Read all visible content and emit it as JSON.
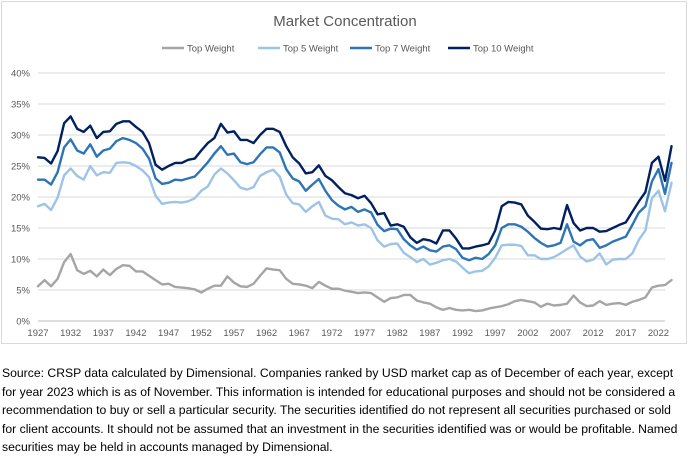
{
  "chart_data": {
    "type": "line",
    "title": "Market Concentration",
    "xlabel": "",
    "ylabel": "",
    "ylim": [
      0,
      40
    ],
    "yticks": [
      "0%",
      "5%",
      "10%",
      "15%",
      "20%",
      "25%",
      "30%",
      "35%",
      "40%"
    ],
    "ytick_values": [
      0,
      5,
      10,
      15,
      20,
      25,
      30,
      35,
      40
    ],
    "xticks": [
      "1927",
      "1932",
      "1937",
      "1942",
      "1947",
      "1952",
      "1957",
      "1962",
      "1967",
      "1972",
      "1977",
      "1982",
      "1987",
      "1992",
      "1997",
      "2002",
      "2007",
      "2012",
      "2017",
      "2022"
    ],
    "x_start": 1927,
    "x_end": 2023,
    "legend_position": "top-center",
    "series": [
      {
        "name": "Top Weight",
        "color": "#a5a5a5",
        "values": [
          5.6,
          6.6,
          5.6,
          6.8,
          9.5,
          10.8,
          8.2,
          7.6,
          8.1,
          7.2,
          8.3,
          7.4,
          8.4,
          9.0,
          8.9,
          8.0,
          8.0,
          7.3,
          6.6,
          5.9,
          6.0,
          5.5,
          5.4,
          5.3,
          5.1,
          4.6,
          5.2,
          5.7,
          5.7,
          7.2,
          6.2,
          5.6,
          5.5,
          6.0,
          7.3,
          8.5,
          8.3,
          8.2,
          6.8,
          6.0,
          5.9,
          5.7,
          5.3,
          6.3,
          5.7,
          5.2,
          5.2,
          4.9,
          4.7,
          4.5,
          4.6,
          4.5,
          3.8,
          3.1,
          3.7,
          3.8,
          4.2,
          4.2,
          3.3,
          3.0,
          2.8,
          2.2,
          1.8,
          2.1,
          1.8,
          1.7,
          1.8,
          1.6,
          1.7,
          2.0,
          2.2,
          2.4,
          2.7,
          3.2,
          3.4,
          3.2,
          3.0,
          2.3,
          2.8,
          2.5,
          2.6,
          2.8,
          4.1,
          3.0,
          2.4,
          2.5,
          3.2,
          2.6,
          2.8,
          2.9,
          2.6,
          3.1,
          3.4,
          3.8,
          5.4,
          5.7,
          5.8,
          6.6
        ]
      },
      {
        "name": "Top 5 Weight",
        "color": "#9dc3e6",
        "values": [
          18.5,
          18.9,
          17.9,
          19.9,
          23.5,
          24.6,
          23.4,
          22.8,
          25.0,
          23.5,
          24.0,
          23.9,
          25.5,
          25.6,
          25.5,
          25.0,
          24.3,
          23.2,
          20.2,
          18.9,
          19.1,
          19.2,
          19.1,
          19.3,
          19.8,
          21.0,
          21.7,
          23.6,
          24.6,
          23.8,
          22.7,
          21.5,
          21.2,
          21.6,
          23.4,
          24.0,
          24.4,
          23.3,
          20.4,
          19.0,
          18.8,
          17.6,
          18.5,
          19.2,
          17.0,
          16.5,
          16.4,
          15.6,
          15.9,
          15.4,
          15.6,
          15.0,
          13.0,
          12.0,
          12.4,
          12.5,
          11.0,
          10.3,
          9.5,
          10.0,
          9.1,
          9.4,
          9.8,
          10.0,
          9.6,
          8.6,
          7.7,
          8.0,
          8.1,
          8.8,
          10.2,
          12.2,
          12.3,
          12.3,
          12.1,
          10.6,
          10.6,
          10.0,
          10.0,
          10.3,
          10.9,
          11.6,
          12.2,
          10.4,
          9.6,
          9.9,
          10.9,
          9.1,
          9.9,
          10.0,
          10.0,
          10.9,
          13.1,
          14.6,
          19.8,
          21.0,
          17.7,
          22.3
        ]
      },
      {
        "name": "Top 7 Weight",
        "color": "#2e75b6",
        "values": [
          22.8,
          22.8,
          22.0,
          24.0,
          28.0,
          29.3,
          27.5,
          27.0,
          28.5,
          26.5,
          27.5,
          27.8,
          29.0,
          29.5,
          29.2,
          28.7,
          27.8,
          26.2,
          23.0,
          22.1,
          22.3,
          22.8,
          22.7,
          23.0,
          23.3,
          24.4,
          25.6,
          27.0,
          28.2,
          26.8,
          27.0,
          25.6,
          25.3,
          25.6,
          26.9,
          28.0,
          28.0,
          27.2,
          24.5,
          23.0,
          22.5,
          21.0,
          22.0,
          22.9,
          21.0,
          19.5,
          18.6,
          18.0,
          18.4,
          17.6,
          18.0,
          17.5,
          15.5,
          14.5,
          14.9,
          14.8,
          13.2,
          12.2,
          11.5,
          12.0,
          11.4,
          11.2,
          12.0,
          12.2,
          11.6,
          10.2,
          9.8,
          10.2,
          10.0,
          10.8,
          12.2,
          15.0,
          15.6,
          15.6,
          15.2,
          14.4,
          13.4,
          12.6,
          12.0,
          12.2,
          12.6,
          15.6,
          12.8,
          12.2,
          13.0,
          13.2,
          11.8,
          12.2,
          12.8,
          13.2,
          13.6,
          15.5,
          17.5,
          18.5,
          22.5,
          24.5,
          20.5,
          25.5
        ]
      },
      {
        "name": "Top 10 Weight",
        "color": "#002060",
        "values": [
          26.4,
          26.3,
          25.4,
          27.4,
          31.9,
          33.0,
          31.0,
          30.5,
          31.5,
          29.5,
          30.5,
          30.6,
          31.8,
          32.2,
          32.2,
          31.3,
          30.5,
          28.7,
          25.2,
          24.4,
          25.0,
          25.5,
          25.5,
          26.0,
          26.2,
          27.5,
          28.7,
          29.5,
          31.8,
          30.4,
          30.6,
          29.2,
          29.2,
          28.7,
          30.0,
          31.0,
          31.0,
          30.5,
          28.2,
          26.4,
          25.4,
          23.8,
          24.0,
          25.1,
          23.4,
          22.7,
          21.6,
          20.6,
          20.3,
          19.8,
          20.2,
          19.0,
          17.2,
          17.4,
          15.4,
          15.6,
          15.2,
          13.5,
          12.6,
          13.2,
          13.0,
          12.5,
          14.6,
          14.6,
          13.3,
          11.7,
          11.7,
          12.0,
          12.2,
          12.5,
          14.6,
          18.5,
          19.2,
          19.1,
          18.8,
          17.0,
          16.0,
          14.9,
          14.8,
          15.0,
          14.8,
          18.7,
          15.8,
          14.6,
          15.0,
          15.0,
          14.4,
          14.5,
          15.0,
          15.5,
          15.9,
          17.6,
          19.3,
          20.8,
          25.5,
          26.5,
          22.6,
          28.2
        ]
      }
    ]
  },
  "source_note": "Source: CRSP data calculated by Dimensional. Companies ranked by USD market cap as of December of each year, except for year 2023 which is as of November. This information is intended for educational purposes and should not be considered a recommendation to buy or sell a particular security. The securities identified do not represent all securities purchased or sold for client accounts. It should not be assumed that an investment in the securities identified was or would be profitable. Named securities may be held in accounts managed by Dimensional."
}
